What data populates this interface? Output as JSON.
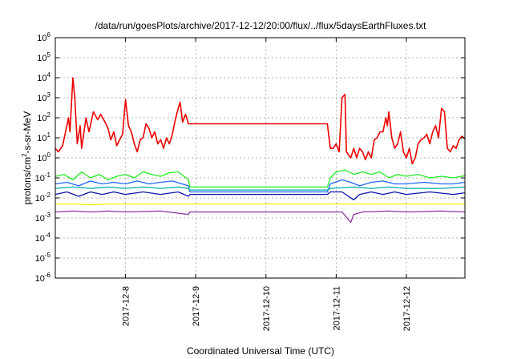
{
  "chart_data": {
    "type": "line",
    "title": "/data/run/goesPlots/archive/2017-12-12/20:00/flux/../flux/5daysEarthFluxes.txt",
    "xlabel": "Coordinated Universal Time (UTC)",
    "ylabel_parts": {
      "base": "protons/cm",
      "sup": "2",
      "rest": "-s-sr-MeV"
    },
    "yscale": "log",
    "ylim": [
      1e-06,
      1000000.0
    ],
    "y_ticks": [
      {
        "exp": -6
      },
      {
        "exp": -5
      },
      {
        "exp": -4
      },
      {
        "exp": -3
      },
      {
        "exp": -2
      },
      {
        "exp": -1
      },
      {
        "exp": 0
      },
      {
        "exp": 1
      },
      {
        "exp": 2
      },
      {
        "exp": 3
      },
      {
        "exp": 4
      },
      {
        "exp": 5
      },
      {
        "exp": 6
      }
    ],
    "tick_base": "10",
    "xlim": [
      "2017-12-07T00:00",
      "2017-12-12T20:00"
    ],
    "x_ticks": [
      "2017-12-8",
      "2017-12-9",
      "2017-12-10",
      "2017-12-11",
      "2017-12-12"
    ],
    "x_tick_times": [
      "2017-12-08T00:00",
      "2017-12-09T00:00",
      "2017-12-10T00:00",
      "2017-12-11T00:00",
      "2017-12-12T00:00"
    ],
    "grid": true,
    "series": [
      {
        "color": "#ee0000",
        "points": [
          [
            "2017-12-07T00:00",
            3
          ],
          [
            "2017-12-07T01:00",
            2
          ],
          [
            "2017-12-07T02:30",
            4
          ],
          [
            "2017-12-07T03:30",
            20
          ],
          [
            "2017-12-07T04:30",
            100
          ],
          [
            "2017-12-07T05:00",
            20
          ],
          [
            "2017-12-07T06:00",
            10000
          ],
          [
            "2017-12-07T06:40",
            1000
          ],
          [
            "2017-12-07T07:30",
            5
          ],
          [
            "2017-12-07T08:30",
            40
          ],
          [
            "2017-12-07T09:00",
            3
          ],
          [
            "2017-12-07T10:30",
            100
          ],
          [
            "2017-12-07T11:30",
            20
          ],
          [
            "2017-12-07T13:00",
            200
          ],
          [
            "2017-12-07T14:30",
            80
          ],
          [
            "2017-12-07T15:30",
            150
          ],
          [
            "2017-12-07T17:00",
            60
          ],
          [
            "2017-12-07T18:00",
            30
          ],
          [
            "2017-12-07T19:00",
            8
          ],
          [
            "2017-12-07T20:00",
            20
          ],
          [
            "2017-12-07T21:00",
            4
          ],
          [
            "2017-12-07T22:00",
            8
          ],
          [
            "2017-12-07T23:00",
            15
          ],
          [
            "2017-12-08T00:00",
            800
          ],
          [
            "2017-12-08T01:00",
            40
          ],
          [
            "2017-12-08T02:00",
            20
          ],
          [
            "2017-12-08T03:00",
            5
          ],
          [
            "2017-12-08T04:00",
            2
          ],
          [
            "2017-12-08T05:00",
            8
          ],
          [
            "2017-12-08T06:00",
            10
          ],
          [
            "2017-12-08T07:00",
            50
          ],
          [
            "2017-12-08T08:00",
            30
          ],
          [
            "2017-12-08T09:00",
            10
          ],
          [
            "2017-12-08T10:00",
            20
          ],
          [
            "2017-12-08T11:00",
            5
          ],
          [
            "2017-12-08T12:00",
            8
          ],
          [
            "2017-12-08T13:00",
            3
          ],
          [
            "2017-12-08T14:00",
            10
          ],
          [
            "2017-12-08T15:00",
            5
          ],
          [
            "2017-12-08T16:00",
            15
          ],
          [
            "2017-12-08T17:00",
            80
          ],
          [
            "2017-12-08T18:00",
            300
          ],
          [
            "2017-12-08T18:40",
            600
          ],
          [
            "2017-12-08T19:30",
            60
          ],
          [
            "2017-12-08T20:30",
            150
          ],
          [
            "2017-12-08T21:30",
            50
          ],
          [
            "2017-12-10T21:00",
            50
          ],
          [
            "2017-12-10T22:00",
            3
          ],
          [
            "2017-12-10T23:00",
            3
          ],
          [
            "2017-12-11T00:00",
            5
          ],
          [
            "2017-12-11T01:00",
            2
          ],
          [
            "2017-12-11T02:00",
            1000
          ],
          [
            "2017-12-11T03:00",
            1500
          ],
          [
            "2017-12-11T03:30",
            2
          ],
          [
            "2017-12-11T05:00",
            1
          ],
          [
            "2017-12-11T06:00",
            3
          ],
          [
            "2017-12-11T07:00",
            1
          ],
          [
            "2017-12-11T08:00",
            3
          ],
          [
            "2017-12-11T09:00",
            2
          ],
          [
            "2017-12-11T10:00",
            0.8
          ],
          [
            "2017-12-11T11:00",
            2
          ],
          [
            "2017-12-11T12:00",
            1
          ],
          [
            "2017-12-11T13:00",
            8
          ],
          [
            "2017-12-11T14:00",
            10
          ],
          [
            "2017-12-11T15:00",
            20
          ],
          [
            "2017-12-11T16:00",
            20
          ],
          [
            "2017-12-11T17:00",
            100
          ],
          [
            "2017-12-11T17:30",
            40
          ],
          [
            "2017-12-11T18:00",
            200
          ],
          [
            "2017-12-11T19:00",
            10
          ],
          [
            "2017-12-11T20:00",
            3
          ],
          [
            "2017-12-11T21:00",
            5
          ],
          [
            "2017-12-11T22:00",
            20
          ],
          [
            "2017-12-11T23:00",
            2
          ],
          [
            "2017-12-12T00:00",
            1
          ],
          [
            "2017-12-12T01:00",
            3
          ],
          [
            "2017-12-12T02:00",
            0.5
          ],
          [
            "2017-12-12T03:00",
            1
          ],
          [
            "2017-12-12T04:00",
            5
          ],
          [
            "2017-12-12T05:00",
            8
          ],
          [
            "2017-12-12T06:00",
            10
          ],
          [
            "2017-12-12T07:00",
            15
          ],
          [
            "2017-12-12T08:00",
            5
          ],
          [
            "2017-12-12T09:00",
            20
          ],
          [
            "2017-12-12T10:00",
            40
          ],
          [
            "2017-12-12T11:00",
            10
          ],
          [
            "2017-12-12T12:00",
            300
          ],
          [
            "2017-12-12T13:00",
            200
          ],
          [
            "2017-12-12T14:00",
            3
          ],
          [
            "2017-12-12T15:00",
            2
          ],
          [
            "2017-12-12T16:00",
            4
          ],
          [
            "2017-12-12T17:00",
            3
          ],
          [
            "2017-12-12T18:00",
            8
          ],
          [
            "2017-12-12T19:00",
            12
          ],
          [
            "2017-12-12T20:00",
            9
          ]
        ]
      },
      {
        "color": "#22ee22",
        "points": [
          [
            "2017-12-07T00:00",
            0.12
          ],
          [
            "2017-12-07T03:00",
            0.15
          ],
          [
            "2017-12-07T06:00",
            0.08
          ],
          [
            "2017-12-07T09:00",
            0.2
          ],
          [
            "2017-12-07T12:00",
            0.1
          ],
          [
            "2017-12-07T15:00",
            0.15
          ],
          [
            "2017-12-07T18:00",
            0.08
          ],
          [
            "2017-12-07T21:00",
            0.12
          ],
          [
            "2017-12-08T00:00",
            0.15
          ],
          [
            "2017-12-08T03:00",
            0.1
          ],
          [
            "2017-12-08T06:00",
            0.2
          ],
          [
            "2017-12-08T09:00",
            0.15
          ],
          [
            "2017-12-08T12:00",
            0.12
          ],
          [
            "2017-12-08T15:00",
            0.18
          ],
          [
            "2017-12-08T18:00",
            0.2
          ],
          [
            "2017-12-08T21:30",
            0.08
          ],
          [
            "2017-12-08T22:00",
            0.035
          ],
          [
            "2017-12-10T21:00",
            0.035
          ],
          [
            "2017-12-10T22:00",
            0.1
          ],
          [
            "2017-12-11T00:00",
            0.2
          ],
          [
            "2017-12-11T03:00",
            0.25
          ],
          [
            "2017-12-11T06:00",
            0.15
          ],
          [
            "2017-12-11T09:00",
            0.2
          ],
          [
            "2017-12-11T12:00",
            0.15
          ],
          [
            "2017-12-11T15:00",
            0.2
          ],
          [
            "2017-12-11T18:00",
            0.1
          ],
          [
            "2017-12-11T21:00",
            0.15
          ],
          [
            "2017-12-12T00:00",
            0.12
          ],
          [
            "2017-12-12T04:00",
            0.15
          ],
          [
            "2017-12-12T08:00",
            0.1
          ],
          [
            "2017-12-12T12:00",
            0.12
          ],
          [
            "2017-12-12T16:00",
            0.1
          ],
          [
            "2017-12-12T20:00",
            0.13
          ]
        ]
      },
      {
        "color": "#2266ff",
        "points": [
          [
            "2017-12-07T00:00",
            0.05
          ],
          [
            "2017-12-07T04:00",
            0.06
          ],
          [
            "2017-12-07T08:00",
            0.04
          ],
          [
            "2017-12-07T12:00",
            0.07
          ],
          [
            "2017-12-07T16:00",
            0.05
          ],
          [
            "2017-12-07T20:00",
            0.06
          ],
          [
            "2017-12-08T00:00",
            0.05
          ],
          [
            "2017-12-08T04:00",
            0.07
          ],
          [
            "2017-12-08T08:00",
            0.05
          ],
          [
            "2017-12-08T12:00",
            0.06
          ],
          [
            "2017-12-08T16:00",
            0.07
          ],
          [
            "2017-12-08T21:30",
            0.04
          ],
          [
            "2017-12-08T22:00",
            0.02
          ],
          [
            "2017-12-10T21:00",
            0.02
          ],
          [
            "2017-12-10T22:00",
            0.05
          ],
          [
            "2017-12-11T02:00",
            0.08
          ],
          [
            "2017-12-11T05:00",
            0.06
          ],
          [
            "2017-12-11T08:00",
            0.04
          ],
          [
            "2017-12-11T12:00",
            0.06
          ],
          [
            "2017-12-11T16:00",
            0.07
          ],
          [
            "2017-12-11T20:00",
            0.05
          ],
          [
            "2017-12-12T00:00",
            0.05
          ],
          [
            "2017-12-12T06:00",
            0.06
          ],
          [
            "2017-12-12T12:00",
            0.05
          ],
          [
            "2017-12-12T16:00",
            0.05
          ],
          [
            "2017-12-12T20:00",
            0.06
          ]
        ]
      },
      {
        "color": "#00aaaa",
        "points": [
          [
            "2017-12-07T00:00",
            0.03
          ],
          [
            "2017-12-07T06:00",
            0.035
          ],
          [
            "2017-12-07T12:00",
            0.03
          ],
          [
            "2017-12-07T18:00",
            0.035
          ],
          [
            "2017-12-08T00:00",
            0.03
          ],
          [
            "2017-12-08T06:00",
            0.035
          ],
          [
            "2017-12-08T12:00",
            0.03
          ],
          [
            "2017-12-08T18:00",
            0.035
          ],
          [
            "2017-12-08T21:30",
            0.03
          ],
          [
            "2017-12-08T22:00",
            0.025
          ],
          [
            "2017-12-10T21:00",
            0.025
          ],
          [
            "2017-12-10T22:00",
            0.03
          ],
          [
            "2017-12-11T06:00",
            0.035
          ],
          [
            "2017-12-11T12:00",
            0.03
          ],
          [
            "2017-12-11T18:00",
            0.035
          ],
          [
            "2017-12-12T00:00",
            0.03
          ],
          [
            "2017-12-12T12:00",
            0.03
          ],
          [
            "2017-12-12T20:00",
            0.035
          ]
        ]
      },
      {
        "color": "#1111aa",
        "points": [
          [
            "2017-12-07T00:00",
            0.015
          ],
          [
            "2017-12-07T04:00",
            0.02
          ],
          [
            "2017-12-07T08:00",
            0.012
          ],
          [
            "2017-12-07T12:00",
            0.02
          ],
          [
            "2017-12-07T16:00",
            0.015
          ],
          [
            "2017-12-07T20:00",
            0.02
          ],
          [
            "2017-12-08T00:00",
            0.015
          ],
          [
            "2017-12-08T06:00",
            0.02
          ],
          [
            "2017-12-08T12:00",
            0.015
          ],
          [
            "2017-12-08T18:00",
            0.02
          ],
          [
            "2017-12-08T21:30",
            0.012
          ],
          [
            "2017-12-08T22:00",
            0.015
          ],
          [
            "2017-12-10T21:00",
            0.015
          ],
          [
            "2017-12-10T22:00",
            0.02
          ],
          [
            "2017-12-11T02:00",
            0.02
          ],
          [
            "2017-12-11T06:00",
            0.008
          ],
          [
            "2017-12-11T08:00",
            0.015
          ],
          [
            "2017-12-11T12:00",
            0.02
          ],
          [
            "2017-12-11T16:00",
            0.015
          ],
          [
            "2017-12-11T20:00",
            0.02
          ],
          [
            "2017-12-12T00:00",
            0.015
          ],
          [
            "2017-12-12T08:00",
            0.02
          ],
          [
            "2017-12-12T16:00",
            0.015
          ],
          [
            "2017-12-12T20:00",
            0.018
          ]
        ]
      },
      {
        "color": "#eeee00",
        "points": [
          [
            "2017-12-07T00:00",
            0.005
          ],
          [
            "2017-12-07T06:00",
            0.005
          ],
          [
            "2017-12-07T12:00",
            0.0045
          ],
          [
            "2017-12-07T18:00",
            0.005
          ],
          [
            "2017-12-08T00:00",
            0.005
          ],
          [
            "2017-12-08T12:00",
            0.005
          ],
          [
            "2017-12-08T21:30",
            0.005
          ],
          [
            "2017-12-10T21:00",
            0.005
          ],
          [
            "2017-12-11T06:00",
            0.005
          ],
          [
            "2017-12-11T12:00",
            0.005
          ],
          [
            "2017-12-12T00:00",
            0.005
          ],
          [
            "2017-12-12T20:00",
            0.005
          ]
        ]
      },
      {
        "color": "#883399",
        "points": [
          [
            "2017-12-07T00:00",
            0.002
          ],
          [
            "2017-12-07T06:00",
            0.0022
          ],
          [
            "2017-12-07T12:00",
            0.002
          ],
          [
            "2017-12-07T18:00",
            0.0022
          ],
          [
            "2017-12-08T00:00",
            0.002
          ],
          [
            "2017-12-08T12:00",
            0.0022
          ],
          [
            "2017-12-08T21:30",
            0.0015
          ],
          [
            "2017-12-08T22:00",
            0.002
          ],
          [
            "2017-12-10T21:00",
            0.002
          ],
          [
            "2017-12-11T02:00",
            0.002
          ],
          [
            "2017-12-11T05:00",
            0.0006
          ],
          [
            "2017-12-11T06:00",
            0.0015
          ],
          [
            "2017-12-11T09:00",
            0.002
          ],
          [
            "2017-12-11T18:00",
            0.0022
          ],
          [
            "2017-12-12T00:00",
            0.002
          ],
          [
            "2017-12-12T12:00",
            0.0022
          ],
          [
            "2017-12-12T20:00",
            0.002
          ]
        ]
      }
    ]
  }
}
